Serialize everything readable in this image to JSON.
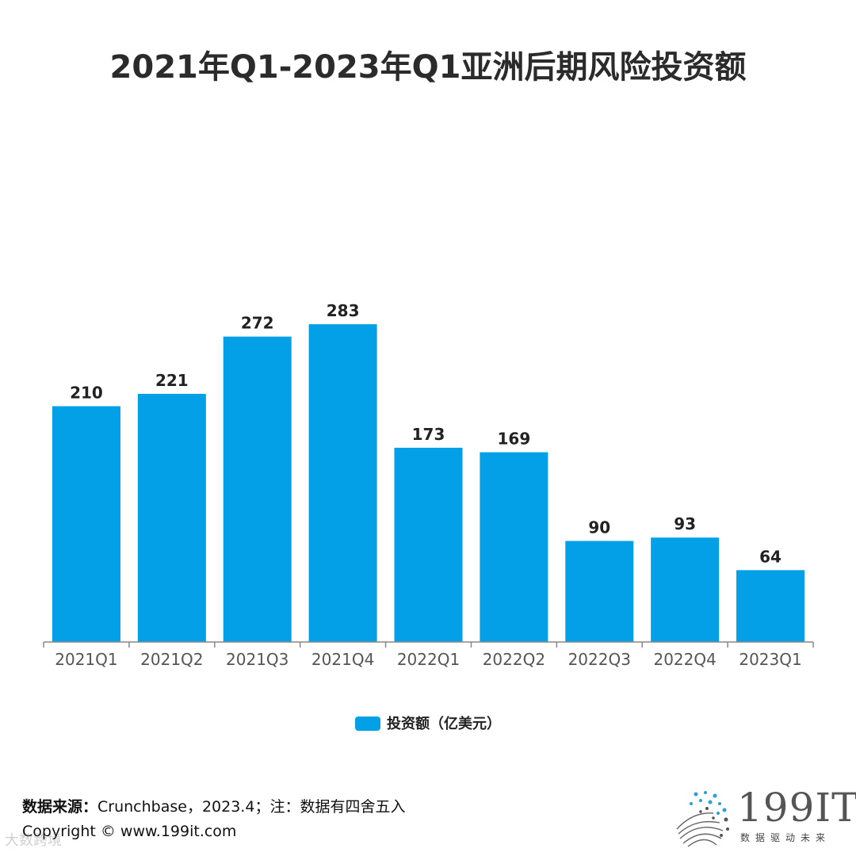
{
  "title": "2021年Q1-2023年Q1亚洲后期风险投资额",
  "legend": {
    "label": "投资额（亿美元）"
  },
  "colors": {
    "bar": "#03A0E8",
    "axis": "#888888",
    "tick_label": "#555555",
    "value_label": "#222222"
  },
  "footer": {
    "source_label": "数据来源：",
    "source_text": "Crunchbase，2023.4；注：数据有四舍五入",
    "copyright": "Copyright © www.199it.com",
    "watermark": "大数跨境"
  },
  "logo": {
    "name": "199IT",
    "tagline": "数据驱动未来",
    "icon": "dot-cluster-logo-icon"
  },
  "chart_data": {
    "type": "bar",
    "title": "2021年Q1-2023年Q1亚洲后期风险投资额",
    "categories": [
      "2021Q1",
      "2021Q2",
      "2021Q3",
      "2021Q4",
      "2022Q1",
      "2022Q2",
      "2022Q3",
      "2022Q4",
      "2023Q1"
    ],
    "series": [
      {
        "name": "投资额（亿美元）",
        "values": [
          210,
          221,
          272,
          283,
          173,
          169,
          90,
          93,
          64
        ]
      }
    ],
    "ylim": [
      0,
      300
    ],
    "grid": false,
    "legend_position": "bottom",
    "data_labels": true
  }
}
